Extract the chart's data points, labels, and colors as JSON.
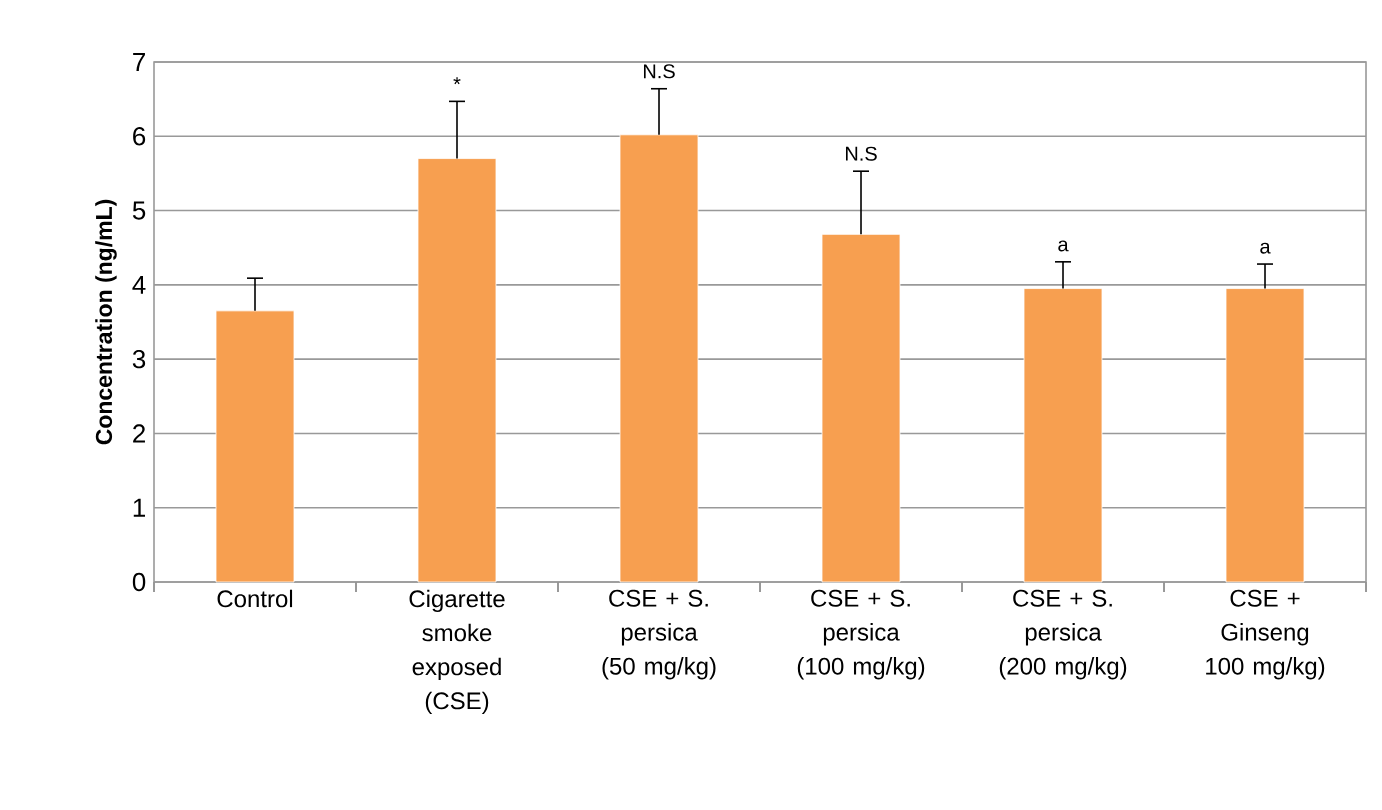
{
  "chart_data": {
    "type": "bar",
    "ylabel": "Concentration (ng/mL)",
    "categories": [
      "Control",
      "Cigarette smoke exposed (CSE)",
      "CSE + S. persica (50 mg/kg)",
      "CSE + S. persica (100 mg/kg)",
      "CSE + S. persica (200 mg/kg)",
      "CSE + Ginseng 100 mg/kg)"
    ],
    "values": [
      3.65,
      5.7,
      6.02,
      4.68,
      3.95,
      3.95
    ],
    "errors": [
      0.44,
      0.77,
      0.62,
      0.85,
      0.36,
      0.33
    ],
    "color": "#f79f50",
    "ylim": [
      0,
      7
    ],
    "yticks": [
      0,
      1,
      2,
      3,
      4,
      5,
      6,
      7
    ],
    "grid": "y",
    "annotations": [
      "*",
      "N.S",
      "N.S",
      "a",
      "a"
    ]
  }
}
